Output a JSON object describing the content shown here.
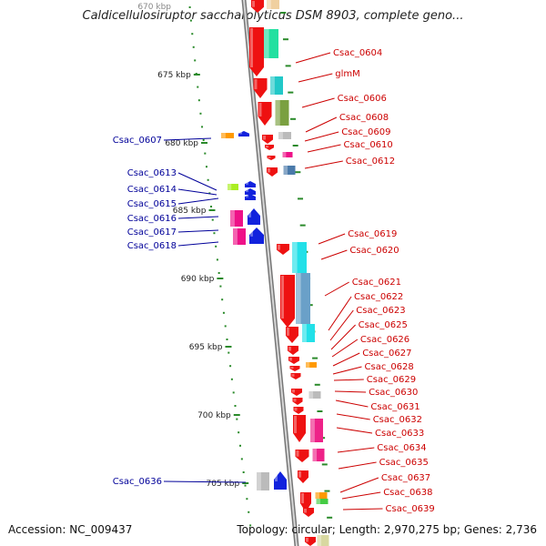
{
  "title": "Caldicellulosiruptor saccharolyticus DSM 8903, complete geno...",
  "accession": "Accession: NC_009437",
  "topology": "Topology: circular; Length: 2,970,275 bp; Genes: 2,736",
  "top_tick_label": "670 kbp",
  "ticks": [
    "675 kbp",
    "680 kbp",
    "685 kbp",
    "690 kbp",
    "695 kbp",
    "700 kbp",
    "705 kbp"
  ],
  "right_labels": [
    "Csac_0604",
    "glmM",
    "Csac_0606",
    "Csac_0608",
    "Csac_0609",
    "Csac_0610",
    "Csac_0612",
    "Csac_0619",
    "Csac_0620",
    "Csac_0621",
    "Csac_0622",
    "Csac_0623",
    "Csac_0625",
    "Csac_0626",
    "Csac_0627",
    "Csac_0628",
    "Csac_0629",
    "Csac_0630",
    "Csac_0631",
    "Csac_0632",
    "Csac_0633",
    "Csac_0634",
    "Csac_0635",
    "Csac_0637",
    "Csac_0638",
    "Csac_0639"
  ],
  "left_labels": [
    "Csac_0607",
    "Csac_0613",
    "Csac_0614",
    "Csac_0615",
    "Csac_0616",
    "Csac_0617",
    "Csac_0618",
    "Csac_0636"
  ],
  "colors": {
    "backbone": "#aaaaaa",
    "cds_forward": "#ee1111",
    "cds_reverse": "#1122dd",
    "label_right": "#cc0000",
    "label_left": "#000099",
    "tick": "#2a8a2a",
    "leader": "#cc0000",
    "leader_left": "#000099"
  }
}
